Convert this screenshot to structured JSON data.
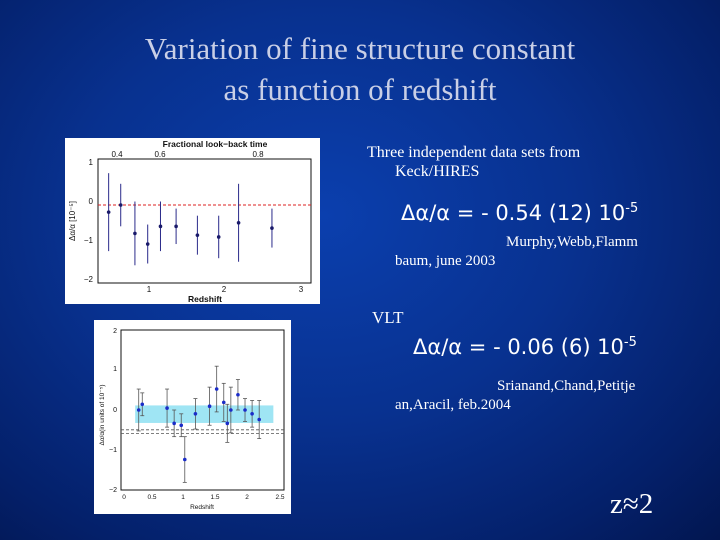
{
  "slide": {
    "title_line1": "Variation of fine structure constant",
    "title_line2": "as function of redshift"
  },
  "keck": {
    "intro_line1": "Three independent data sets from",
    "intro_line2": "Keck/HIRES",
    "result_main": "Δα/α =  - 0.54 (12)  10",
    "result_exp": "-5",
    "ref_line1": "Murphy,Webb,Flamm",
    "ref_line2": "baum, june 2003"
  },
  "vlt": {
    "label": "VLT",
    "result_main": "Δα/α =  - 0.06 (6)  10",
    "result_exp": "-5",
    "ref_line1": "Srianand,Chand,Petitje",
    "ref_line2": "an,Aracil, feb.2004"
  },
  "footer": {
    "z_label": "z≈2"
  },
  "plot_keck": {
    "top_axis_title": "Fractional look−back time",
    "top_ticks": [
      "0.4",
      "0.6",
      "0.8"
    ],
    "y_label": "Δα/α [10⁻⁵]",
    "y_ticks": [
      "1",
      "0",
      "−1",
      "−2"
    ],
    "x_label": "Redshift",
    "x_ticks": [
      "1",
      "2",
      "3"
    ]
  },
  "plot_vlt": {
    "y_label": "Δα/α(in units of 10⁻⁵)",
    "y_ticks": [
      "2",
      "1",
      "0",
      "−1",
      "−2"
    ],
    "x_label": "Redshift",
    "x_ticks": [
      "0",
      "0.5",
      "1",
      "1.5",
      "2",
      "2.5"
    ]
  },
  "chart_data": [
    {
      "type": "scatter",
      "name_hint": "Keck/HIRES binned",
      "xlabel": "Redshift",
      "ylabel": "Δα/α [10⁻⁵]",
      "xlim": [
        0.4,
        3.4
      ],
      "ylim": [
        -2.2,
        1.3
      ],
      "reference_line": 0,
      "points": [
        {
          "x": 0.55,
          "y": -0.2,
          "err": 1.1
        },
        {
          "x": 0.72,
          "y": 0.0,
          "err": 0.6
        },
        {
          "x": 0.92,
          "y": -0.8,
          "err": 0.9
        },
        {
          "x": 1.1,
          "y": -1.1,
          "err": 0.55
        },
        {
          "x": 1.28,
          "y": -0.6,
          "err": 0.7
        },
        {
          "x": 1.5,
          "y": -0.6,
          "err": 0.5
        },
        {
          "x": 1.8,
          "y": -0.85,
          "err": 0.55
        },
        {
          "x": 2.1,
          "y": -0.9,
          "err": 0.6
        },
        {
          "x": 2.38,
          "y": -0.5,
          "err": 1.1
        },
        {
          "x": 2.85,
          "y": -0.65,
          "err": 0.55
        }
      ]
    },
    {
      "type": "scatter",
      "name_hint": "VLT/UVES",
      "xlabel": "Redshift",
      "ylabel": "Δα/α(in units of 10⁻⁵)",
      "xlim": [
        0.3,
        2.6
      ],
      "ylim": [
        -2,
        2.2
      ],
      "mean_band": [
        -0.12,
        0.0
      ],
      "keck_dashed_lines": [
        -0.42,
        -0.52
      ],
      "points": [
        {
          "x": 0.55,
          "y": 0.1,
          "err": 0.55
        },
        {
          "x": 0.6,
          "y": 0.25,
          "err": 0.3
        },
        {
          "x": 0.95,
          "y": 0.15,
          "err": 0.5
        },
        {
          "x": 1.05,
          "y": -0.25,
          "err": 0.35
        },
        {
          "x": 1.15,
          "y": -0.3,
          "err": 0.3
        },
        {
          "x": 1.2,
          "y": -1.2,
          "err": 0.6
        },
        {
          "x": 1.35,
          "y": 0.0,
          "err": 0.4
        },
        {
          "x": 1.55,
          "y": 0.2,
          "err": 0.5
        },
        {
          "x": 1.65,
          "y": 0.65,
          "err": 0.6
        },
        {
          "x": 1.75,
          "y": 0.3,
          "err": 0.5
        },
        {
          "x": 1.8,
          "y": -0.25,
          "err": 0.5
        },
        {
          "x": 1.85,
          "y": 0.1,
          "err": 0.6
        },
        {
          "x": 1.95,
          "y": 0.5,
          "err": 0.4
        },
        {
          "x": 2.05,
          "y": 0.1,
          "err": 0.3
        },
        {
          "x": 2.15,
          "y": 0.0,
          "err": 0.35
        },
        {
          "x": 2.25,
          "y": -0.15,
          "err": 0.5
        }
      ]
    }
  ]
}
